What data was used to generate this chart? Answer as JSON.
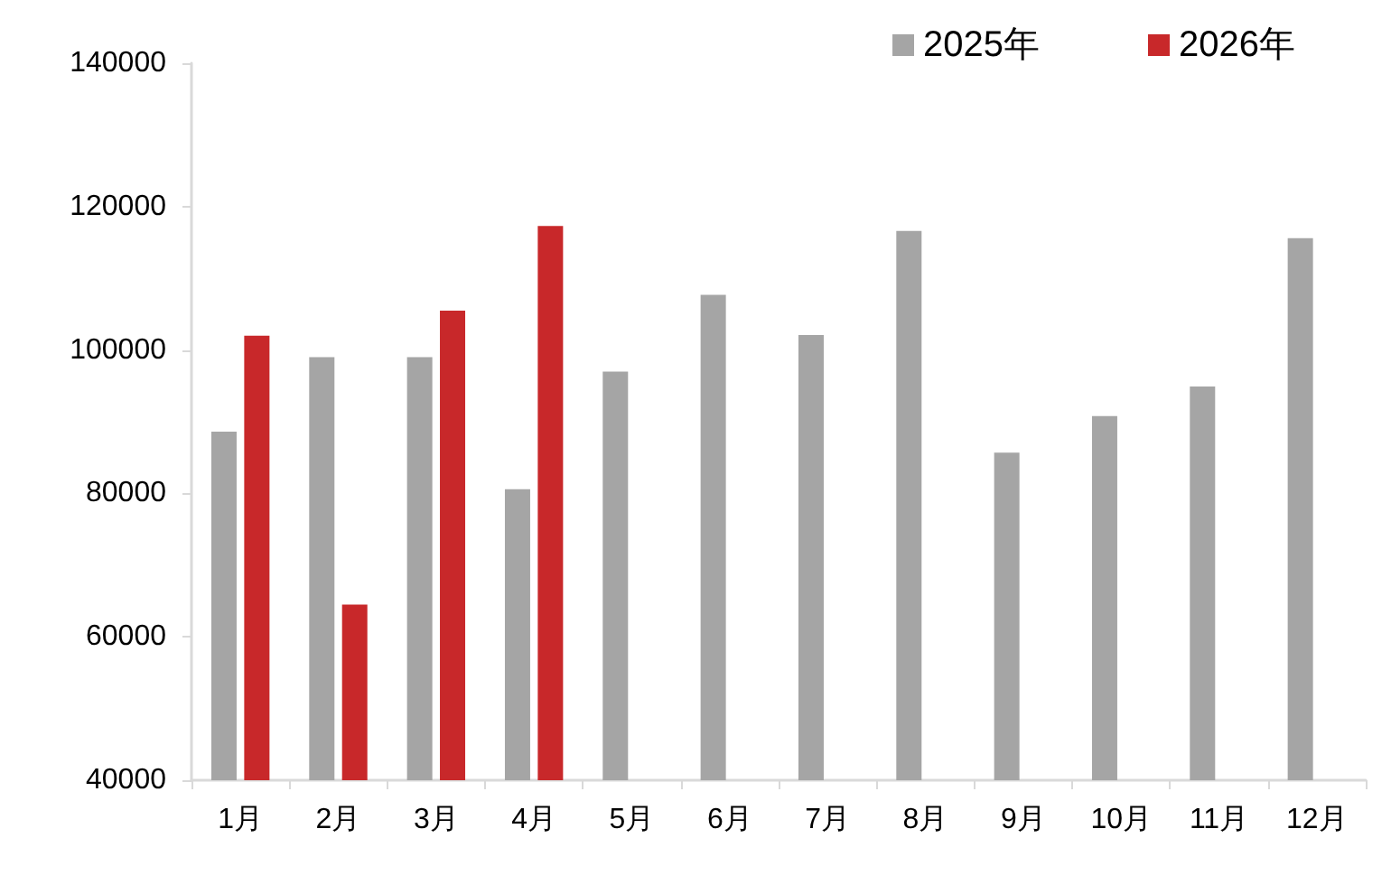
{
  "chart_data": {
    "type": "bar",
    "categories": [
      "1月",
      "2月",
      "3月",
      "4月",
      "5月",
      "6月",
      "7月",
      "8月",
      "9月",
      "10月",
      "11月",
      "12月"
    ],
    "series": [
      {
        "name": "2025年",
        "color": "#a5a5a5",
        "values": [
          88600,
          99000,
          99000,
          80600,
          97000,
          107700,
          102100,
          116600,
          85700,
          90800,
          94900,
          115600
        ]
      },
      {
        "name": "2026年",
        "color": "#c8282a",
        "values": [
          102000,
          64500,
          105500,
          117300,
          null,
          null,
          null,
          null,
          null,
          null,
          null,
          null
        ]
      }
    ],
    "ylim": [
      40000,
      140000
    ],
    "yticks": [
      40000,
      60000,
      80000,
      100000,
      120000,
      140000
    ],
    "grid": false,
    "legend": "top right"
  }
}
